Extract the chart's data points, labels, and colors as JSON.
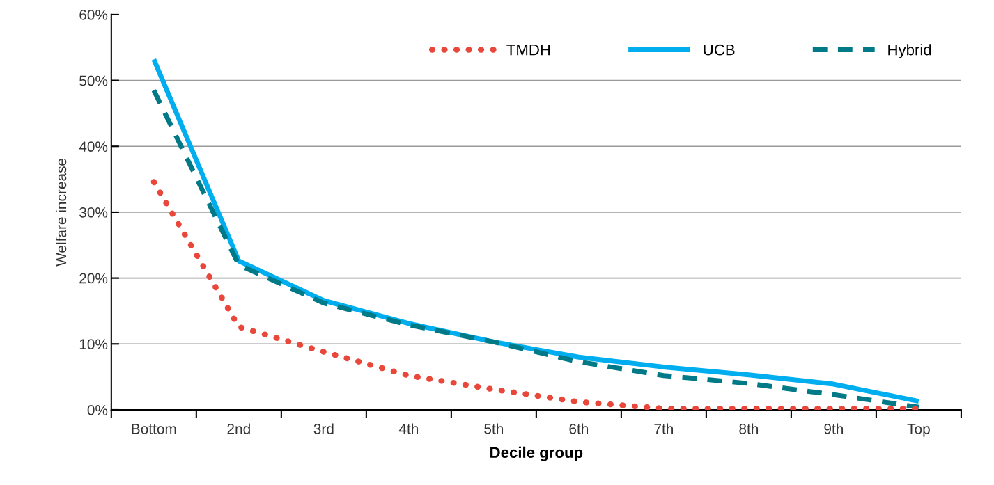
{
  "chart_data": {
    "type": "line",
    "xlabel": "Decile group",
    "ylabel": "Welfare increase",
    "categories": [
      "Bottom",
      "2nd",
      "3rd",
      "4th",
      "5th",
      "6th",
      "7th",
      "8th",
      "9th",
      "Top"
    ],
    "series": [
      {
        "name": "TMDH",
        "color": "#e8473a",
        "line_style": "dotted",
        "values": [
          34.6,
          12.6,
          8.8,
          5.2,
          3.1,
          1.2,
          0.2,
          0.2,
          0.2,
          0.2
        ]
      },
      {
        "name": "UCB",
        "color": "#00aeef",
        "line_style": "solid",
        "values": [
          53.2,
          22.6,
          16.6,
          13.1,
          10.3,
          8.0,
          6.5,
          5.3,
          3.9,
          1.3
        ]
      },
      {
        "name": "Hybrid",
        "color": "#007a87",
        "line_style": "dashed",
        "values": [
          48.5,
          22.0,
          16.2,
          12.9,
          10.3,
          7.3,
          5.2,
          4.0,
          2.3,
          0.4
        ]
      }
    ],
    "ylim": [
      0,
      60
    ],
    "yticks": [
      {
        "value": 0,
        "label": "0%"
      },
      {
        "value": 10,
        "label": "10%"
      },
      {
        "value": 20,
        "label": "20%"
      },
      {
        "value": 30,
        "label": "30%"
      },
      {
        "value": 40,
        "label": "40%"
      },
      {
        "value": 50,
        "label": "50%"
      },
      {
        "value": 60,
        "label": "60%"
      }
    ],
    "grid": "y",
    "legend": "top right"
  }
}
